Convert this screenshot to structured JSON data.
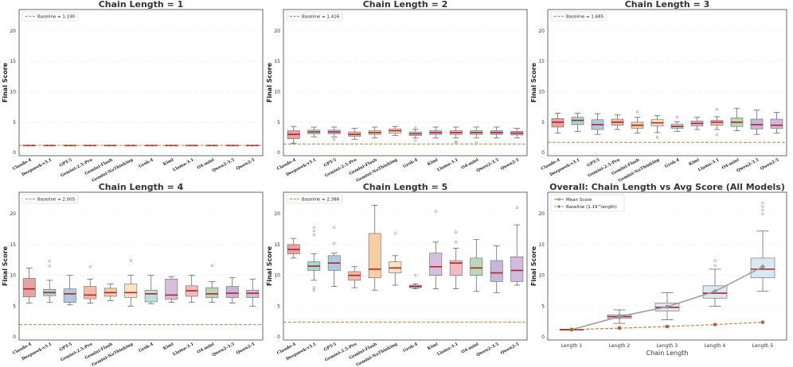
{
  "colors": {
    "baseline": "#c87f4f",
    "median": "#b22222",
    "mean_line": "#9e9e9e",
    "overall_box": "#cfe2ef",
    "palette": [
      "#e28a8a",
      "#8fd0c2",
      "#9bbbd9",
      "#f0aa8e",
      "#f6c28b",
      "#f7dcb4",
      "#a9d8d0",
      "#cdaed4",
      "#f3a8b3",
      "#a6cfa6",
      "#b9a3d1",
      "#c7a7d8"
    ]
  },
  "chart_data": [
    {
      "type": "box",
      "title": "Chain Length = 1",
      "ylabel": "Final Score",
      "ylim": [
        -0.5,
        23.5
      ],
      "yticks": [
        0,
        5,
        10,
        15,
        20
      ],
      "baseline": {
        "label": "Baseline = 1.190",
        "value": 1.19
      },
      "categories": [
        "Claude-4",
        "Deepseek-v3.1",
        "GPT-5",
        "Gemini-2.5-Pro",
        "Gemini-Flash",
        "Gemini-NoThinking",
        "Grok-4",
        "Kimi",
        "Llama-3.1",
        "O4-mini",
        "Qwen2-3.5",
        "Qwen2-5"
      ],
      "boxes": [
        {
          "min": 1.19,
          "q1": 1.19,
          "median": 1.19,
          "q3": 1.19,
          "max": 1.19,
          "outliers": []
        },
        {
          "min": 1.19,
          "q1": 1.19,
          "median": 1.19,
          "q3": 1.19,
          "max": 1.19,
          "outliers": []
        },
        {
          "min": 1.19,
          "q1": 1.19,
          "median": 1.19,
          "q3": 1.19,
          "max": 1.19,
          "outliers": []
        },
        {
          "min": 1.19,
          "q1": 1.19,
          "median": 1.19,
          "q3": 1.19,
          "max": 1.19,
          "outliers": []
        },
        {
          "min": 1.19,
          "q1": 1.19,
          "median": 1.19,
          "q3": 1.19,
          "max": 1.19,
          "outliers": []
        },
        {
          "min": 1.19,
          "q1": 1.19,
          "median": 1.19,
          "q3": 1.19,
          "max": 1.19,
          "outliers": []
        },
        {
          "min": 1.19,
          "q1": 1.19,
          "median": 1.19,
          "q3": 1.19,
          "max": 1.19,
          "outliers": []
        },
        {
          "min": 1.19,
          "q1": 1.19,
          "median": 1.19,
          "q3": 1.19,
          "max": 1.19,
          "outliers": []
        },
        {
          "min": 1.19,
          "q1": 1.19,
          "median": 1.19,
          "q3": 1.19,
          "max": 1.19,
          "outliers": []
        },
        {
          "min": 1.19,
          "q1": 1.19,
          "median": 1.19,
          "q3": 1.19,
          "max": 1.19,
          "outliers": []
        },
        {
          "min": 1.19,
          "q1": 1.19,
          "median": 1.19,
          "q3": 1.19,
          "max": 1.19,
          "outliers": []
        },
        {
          "min": 1.19,
          "q1": 1.19,
          "median": 1.19,
          "q3": 1.19,
          "max": 1.19,
          "outliers": []
        }
      ]
    },
    {
      "type": "box",
      "title": "Chain Length = 2",
      "ylabel": "Final Score",
      "ylim": [
        -0.5,
        23.5
      ],
      "yticks": [
        0,
        5,
        10,
        15,
        20
      ],
      "baseline": {
        "label": "Baseline = 1.416",
        "value": 1.416
      },
      "categories": [
        "Claude-4",
        "Deepseek-v3.1",
        "GPT-5",
        "Gemini-2.5-Pro",
        "Gemini-Flash",
        "Gemini-NoThinking",
        "Grok-4",
        "Kimi",
        "Llama-3.1",
        "O4-mini",
        "Qwen2-3.5",
        "Qwen2-5"
      ],
      "boxes": [
        {
          "min": 1.5,
          "q1": 2.3,
          "median": 3.0,
          "q3": 3.6,
          "max": 4.3,
          "outliers": [
            1.5
          ]
        },
        {
          "min": 2.6,
          "q1": 3.1,
          "median": 3.4,
          "q3": 3.7,
          "max": 4.2,
          "outliers": []
        },
        {
          "min": 2.6,
          "q1": 3.1,
          "median": 3.4,
          "q3": 3.7,
          "max": 4.2,
          "outliers": [
            2.2
          ]
        },
        {
          "min": 2.2,
          "q1": 2.7,
          "median": 3.0,
          "q3": 3.4,
          "max": 4.0,
          "outliers": []
        },
        {
          "min": 2.4,
          "q1": 3.0,
          "median": 3.3,
          "q3": 3.6,
          "max": 4.2,
          "outliers": []
        },
        {
          "min": 2.8,
          "q1": 3.2,
          "median": 3.6,
          "q3": 3.9,
          "max": 4.3,
          "outliers": []
        },
        {
          "min": 2.4,
          "q1": 2.8,
          "median": 3.1,
          "q3": 3.4,
          "max": 3.8,
          "outliers": [
            2.0,
            4.1
          ]
        },
        {
          "min": 2.4,
          "q1": 3.0,
          "median": 3.3,
          "q3": 3.6,
          "max": 4.2,
          "outliers": []
        },
        {
          "min": 2.4,
          "q1": 3.0,
          "median": 3.3,
          "q3": 3.6,
          "max": 4.2,
          "outliers": [
            1.8,
            1.6
          ]
        },
        {
          "min": 2.4,
          "q1": 3.0,
          "median": 3.3,
          "q3": 3.6,
          "max": 4.2,
          "outliers": [
            1.6
          ]
        },
        {
          "min": 2.4,
          "q1": 3.0,
          "median": 3.3,
          "q3": 3.6,
          "max": 4.2,
          "outliers": []
        },
        {
          "min": 2.4,
          "q1": 2.9,
          "median": 3.2,
          "q3": 3.5,
          "max": 4.0,
          "outliers": []
        }
      ]
    },
    {
      "type": "box",
      "title": "Chain Length = 3",
      "ylabel": "Final Score",
      "ylim": [
        -0.5,
        23.5
      ],
      "yticks": [
        0,
        5,
        10,
        15,
        20
      ],
      "baseline": {
        "label": "Baseline = 1.685",
        "value": 1.685
      },
      "categories": [
        "Claude-4",
        "Deepseek-v3.1",
        "GPT-5",
        "Gemini-2.5-Pro",
        "Gemini-Flash",
        "Gemini-NoThinking",
        "Grok-4",
        "Kimi",
        "Llama-3.1",
        "O4-mini",
        "Qwen2-3.5",
        "Qwen2-5"
      ],
      "boxes": [
        {
          "min": 3.2,
          "q1": 4.2,
          "median": 5.0,
          "q3": 5.6,
          "max": 6.5,
          "outliers": []
        },
        {
          "min": 3.5,
          "q1": 4.6,
          "median": 5.3,
          "q3": 5.8,
          "max": 6.5,
          "outliers": []
        },
        {
          "min": 3.0,
          "q1": 3.8,
          "median": 4.6,
          "q3": 5.4,
          "max": 6.4,
          "outliers": []
        },
        {
          "min": 3.8,
          "q1": 4.5,
          "median": 5.0,
          "q3": 5.5,
          "max": 6.2,
          "outliers": []
        },
        {
          "min": 3.2,
          "q1": 4.0,
          "median": 4.5,
          "q3": 5.0,
          "max": 5.8,
          "outliers": [
            6.7
          ]
        },
        {
          "min": 3.3,
          "q1": 4.4,
          "median": 4.9,
          "q3": 5.4,
          "max": 6.1,
          "outliers": [
            2.5
          ]
        },
        {
          "min": 3.5,
          "q1": 4.0,
          "median": 4.3,
          "q3": 4.7,
          "max": 5.1,
          "outliers": [
            5.8
          ]
        },
        {
          "min": 3.8,
          "q1": 4.4,
          "median": 4.8,
          "q3": 5.2,
          "max": 5.8,
          "outliers": []
        },
        {
          "min": 3.8,
          "q1": 4.5,
          "median": 5.0,
          "q3": 5.3,
          "max": 5.9,
          "outliers": [
            7.1,
            3.0
          ]
        },
        {
          "min": 3.6,
          "q1": 4.3,
          "median": 5.0,
          "q3": 5.7,
          "max": 7.3,
          "outliers": []
        },
        {
          "min": 3.0,
          "q1": 3.9,
          "median": 4.6,
          "q3": 5.5,
          "max": 7.0,
          "outliers": []
        },
        {
          "min": 3.2,
          "q1": 4.0,
          "median": 4.5,
          "q3": 5.5,
          "max": 6.6,
          "outliers": []
        }
      ]
    },
    {
      "type": "box",
      "title": "Chain Length = 4",
      "ylabel": "Final Score",
      "ylim": [
        -0.5,
        23.5
      ],
      "yticks": [
        0,
        5,
        10,
        15,
        20
      ],
      "baseline": {
        "label": "Baseline = 2.005",
        "value": 2.005
      },
      "categories": [
        "Claude-4",
        "Deepseek-v3.1",
        "GPT-5",
        "Gemini-2.5-Pro",
        "Gemini-Flash",
        "Gemini-NoThinking",
        "Grok-4",
        "Kimi",
        "Llama-3.1",
        "O4-mini",
        "Qwen2-3.5",
        "Qwen2-5"
      ],
      "boxes": [
        {
          "min": 5.5,
          "q1": 6.5,
          "median": 7.8,
          "q3": 9.5,
          "max": 11.2,
          "outliers": []
        },
        {
          "min": 5.6,
          "q1": 6.7,
          "median": 7.2,
          "q3": 7.7,
          "max": 9.2,
          "outliers": [
            12.3,
            11.5
          ]
        },
        {
          "min": 5.2,
          "q1": 5.6,
          "median": 7.0,
          "q3": 7.8,
          "max": 10.0,
          "outliers": []
        },
        {
          "min": 5.5,
          "q1": 6.2,
          "median": 6.8,
          "q3": 8.2,
          "max": 9.4,
          "outliers": [
            11.4
          ]
        },
        {
          "min": 5.9,
          "q1": 6.6,
          "median": 7.2,
          "q3": 7.9,
          "max": 8.6,
          "outliers": []
        },
        {
          "min": 5.0,
          "q1": 6.4,
          "median": 7.2,
          "q3": 8.6,
          "max": 10.0,
          "outliers": [
            12.4
          ]
        },
        {
          "min": 5.4,
          "q1": 5.7,
          "median": 7.0,
          "q3": 7.6,
          "max": 10.0,
          "outliers": []
        },
        {
          "min": 5.6,
          "q1": 6.1,
          "median": 6.8,
          "q3": 9.4,
          "max": 9.8,
          "outliers": []
        },
        {
          "min": 5.6,
          "q1": 6.6,
          "median": 7.5,
          "q3": 8.3,
          "max": 10.0,
          "outliers": []
        },
        {
          "min": 5.6,
          "q1": 6.4,
          "median": 7.0,
          "q3": 8.0,
          "max": 9.0,
          "outliers": [
            11.6
          ]
        },
        {
          "min": 5.5,
          "q1": 6.4,
          "median": 7.1,
          "q3": 8.2,
          "max": 9.6,
          "outliers": []
        },
        {
          "min": 5.0,
          "q1": 6.4,
          "median": 7.1,
          "q3": 7.6,
          "max": 9.4,
          "outliers": []
        }
      ]
    },
    {
      "type": "box",
      "title": "Chain Length = 5",
      "ylabel": "Final Score",
      "ylim": [
        -0.5,
        23.5
      ],
      "yticks": [
        0,
        5,
        10,
        15,
        20
      ],
      "baseline": {
        "label": "Baseline = 2.386",
        "value": 2.386
      },
      "categories": [
        "Claude-4",
        "Deepseek-v3.1",
        "GPT-5",
        "Gemini-2.5-Pro",
        "Gemini-Flash",
        "Gemini-NoThinking",
        "Grok-4",
        "Kimi",
        "Llama-3.1",
        "O4-mini",
        "Qwen2-3.5",
        "Qwen2-5"
      ],
      "boxes": [
        {
          "min": 12.8,
          "q1": 13.5,
          "median": 14.2,
          "q3": 15.0,
          "max": 16.0,
          "outliers": []
        },
        {
          "min": 9.2,
          "q1": 10.8,
          "median": 11.5,
          "q3": 12.2,
          "max": 13.5,
          "outliers": [
            17.8,
            17.2,
            16.6,
            8.0,
            7.6
          ]
        },
        {
          "min": 8.2,
          "q1": 10.8,
          "median": 12.0,
          "q3": 13.2,
          "max": 13.6,
          "outliers": [
            17.8,
            15.2
          ]
        },
        {
          "min": 8.0,
          "q1": 9.2,
          "median": 10.0,
          "q3": 10.6,
          "max": 11.4,
          "outliers": []
        },
        {
          "min": 7.6,
          "q1": 9.6,
          "median": 11.0,
          "q3": 16.8,
          "max": 21.4,
          "outliers": []
        },
        {
          "min": 8.4,
          "q1": 10.4,
          "median": 11.2,
          "q3": 12.2,
          "max": 13.2,
          "outliers": [
            16.8
          ]
        },
        {
          "min": 7.8,
          "q1": 8.0,
          "median": 8.2,
          "q3": 8.4,
          "max": 8.6,
          "outliers": [
            10.0
          ]
        },
        {
          "min": 7.8,
          "q1": 10.0,
          "median": 11.4,
          "q3": 13.6,
          "max": 15.4,
          "outliers": [
            20.4
          ]
        },
        {
          "min": 7.8,
          "q1": 10.0,
          "median": 12.0,
          "q3": 12.4,
          "max": 14.4,
          "outliers": [
            17.0,
            15.4
          ]
        },
        {
          "min": 7.4,
          "q1": 10.0,
          "median": 11.2,
          "q3": 12.8,
          "max": 15.8,
          "outliers": []
        },
        {
          "min": 7.2,
          "q1": 9.0,
          "median": 10.4,
          "q3": 12.4,
          "max": 14.8,
          "outliers": []
        },
        {
          "min": 8.4,
          "q1": 9.0,
          "median": 10.8,
          "q3": 13.0,
          "max": 18.2,
          "outliers": [
            21.0
          ]
        }
      ]
    },
    {
      "type": "box+line",
      "title": "Overall: Chain Length vs Avg Score (All Models)",
      "xlabel": "Chain Length",
      "ylabel": "Final Score",
      "ylim": [
        -0.5,
        23.5
      ],
      "yticks": [
        0,
        5,
        10,
        15,
        20
      ],
      "categories": [
        "Length 1",
        "Length 2",
        "Length 3",
        "Length 4",
        "Length 5"
      ],
      "legend": {
        "mean": "Mean Score",
        "baseline": "Baseline (1.19^length)"
      },
      "boxes": [
        {
          "min": 1.19,
          "q1": 1.19,
          "median": 1.19,
          "q3": 1.19,
          "max": 1.19,
          "outliers": []
        },
        {
          "min": 2.2,
          "q1": 3.0,
          "median": 3.3,
          "q3": 3.6,
          "max": 4.4,
          "outliers": [
            1.6,
            1.4
          ]
        },
        {
          "min": 2.8,
          "q1": 4.2,
          "median": 4.8,
          "q3": 5.5,
          "max": 7.2,
          "outliers": []
        },
        {
          "min": 5.0,
          "q1": 6.3,
          "median": 7.1,
          "q3": 8.3,
          "max": 11.0,
          "outliers": [
            12.4,
            11.6
          ]
        },
        {
          "min": 7.4,
          "q1": 9.6,
          "median": 11.0,
          "q3": 12.8,
          "max": 17.2,
          "outliers": [
            21.8,
            21.2,
            20.6,
            20.0
          ]
        }
      ],
      "series": [
        {
          "name": "Mean Score",
          "values": [
            1.19,
            3.3,
            4.9,
            7.4,
            11.4
          ]
        },
        {
          "name": "Baseline (1.19^length)",
          "values": [
            1.19,
            1.416,
            1.685,
            2.005,
            2.386
          ]
        }
      ]
    }
  ]
}
